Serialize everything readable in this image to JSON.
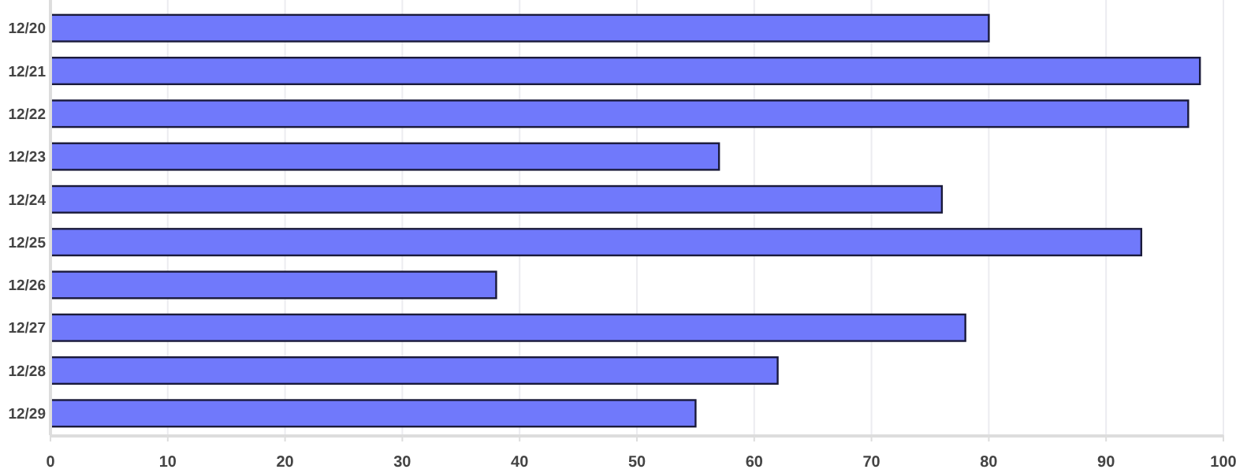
{
  "chart_data": {
    "type": "bar",
    "orientation": "horizontal",
    "categories": [
      "12/20",
      "12/21",
      "12/22",
      "12/23",
      "12/24",
      "12/25",
      "12/26",
      "12/27",
      "12/28",
      "12/29"
    ],
    "values": [
      80,
      98,
      97,
      57,
      76,
      93,
      38,
      78,
      62,
      55
    ],
    "color": "#7079fb",
    "xlim": [
      0,
      100
    ],
    "xticks": [
      0,
      10,
      20,
      30,
      40,
      50,
      60,
      70,
      80,
      90,
      100
    ],
    "grid": "x"
  }
}
